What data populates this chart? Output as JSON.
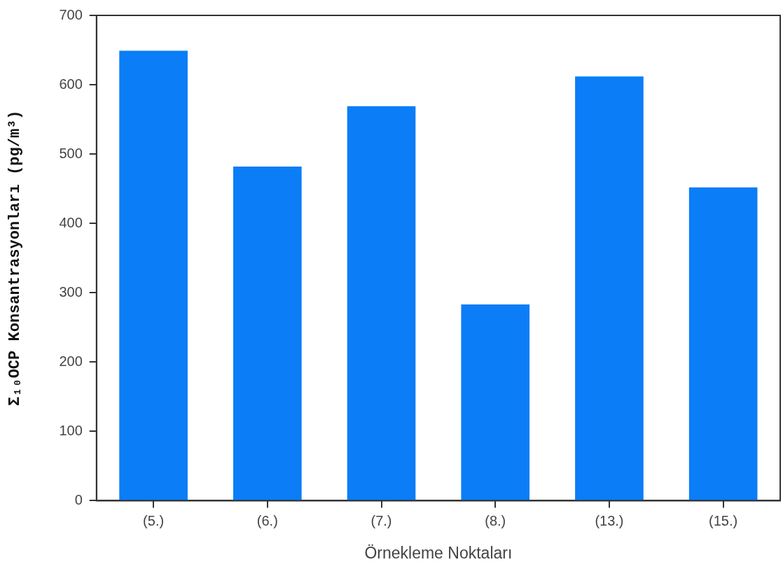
{
  "chart_data": {
    "type": "bar",
    "xlabel": "Örnekleme Noktaları",
    "ylabel": "Σ₁₀OCP Konsantrasyonları (pg/m³)",
    "categories": [
      "(5.)",
      "(6.)",
      "(7.)",
      "(8.)",
      "(13.)",
      "(15.)"
    ],
    "values": [
      649,
      482,
      569,
      283,
      612,
      452
    ],
    "color": "#0a7df7",
    "ylim": [
      0,
      700
    ],
    "yticks": [
      0,
      100,
      200,
      300,
      400,
      500,
      600,
      700
    ],
    "grid": false,
    "legend": false
  }
}
